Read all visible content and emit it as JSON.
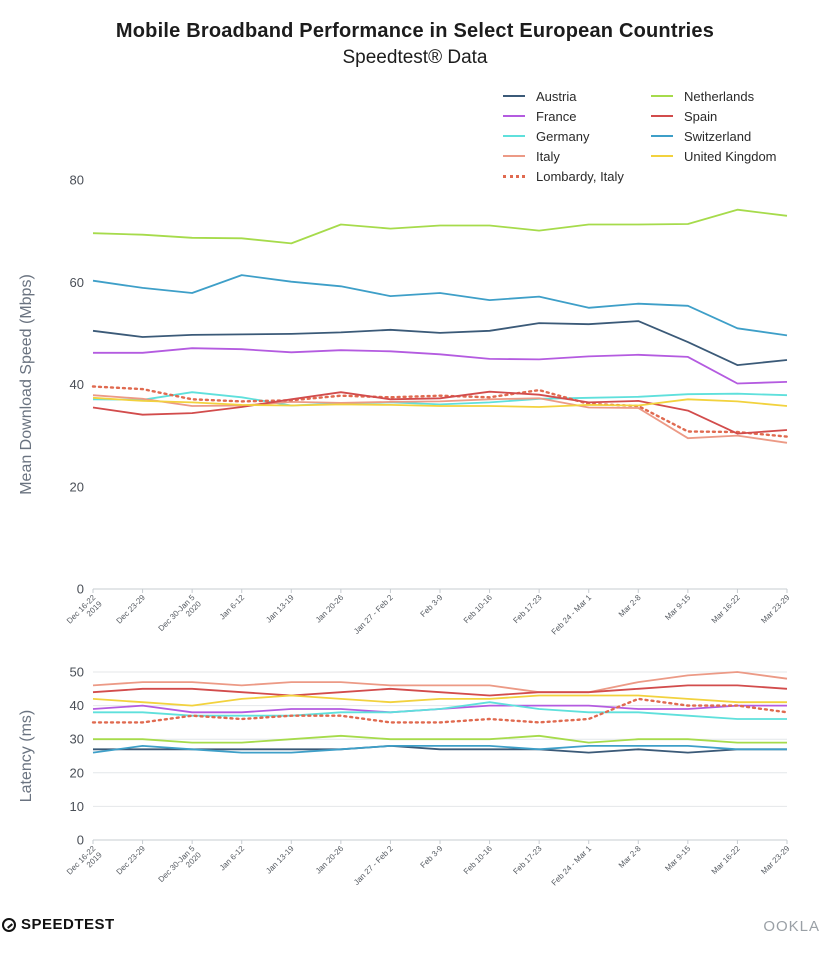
{
  "header": {
    "title": "Mobile Broadband Performance in Select European Countries",
    "subtitle": "Speedtest® Data"
  },
  "footer": {
    "left_logo": "SPEEDTEST",
    "right_logo": "OOKLA"
  },
  "colors": {
    "Austria": "#3b5a78",
    "France": "#b45be0",
    "Germany": "#5fe0dc",
    "Italy": "#ec9a86",
    "Lombardy, Italy": "#e06a50",
    "Netherlands": "#a6db4b",
    "Spain": "#d24c4c",
    "Switzerland": "#3e9fc8",
    "United Kingdom": "#f2d23e"
  },
  "legend": [
    {
      "name": "Austria",
      "style": "solid"
    },
    {
      "name": "France",
      "style": "solid"
    },
    {
      "name": "Germany",
      "style": "solid"
    },
    {
      "name": "Italy",
      "style": "solid"
    },
    {
      "name": "Lombardy, Italy",
      "style": "dotted"
    },
    {
      "name": "Netherlands",
      "style": "solid"
    },
    {
      "name": "Spain",
      "style": "solid"
    },
    {
      "name": "Switzerland",
      "style": "solid"
    },
    {
      "name": "United Kingdom",
      "style": "solid"
    }
  ],
  "chart_data": [
    {
      "type": "line",
      "title": "Mobile Broadband Performance in Select European Countries",
      "xlabel": "",
      "ylabel": "Mean Download Speed (Mbps)",
      "ylim": [
        0,
        80
      ],
      "yticks": [
        0,
        20,
        40,
        60,
        80
      ],
      "grid": false,
      "categories": [
        "Dec 16-22\n2019",
        "Dec 23-29",
        "Dec 30-Jan 5\n2020",
        "Jan 6-12",
        "Jan 13-19",
        "Jan 20-26",
        "Jan 27 - Feb 2",
        "Feb 3-9",
        "Feb 10-16",
        "Feb 17-23",
        "Feb 24 - Mar 1",
        "Mar 2-8",
        "Mar 9-15",
        "Mar 16-22",
        "Mar 23-29"
      ],
      "series": [
        {
          "name": "Austria",
          "values": [
            50.5,
            49.3,
            49.7,
            49.8,
            49.9,
            50.2,
            50.7,
            50.1,
            50.5,
            52.0,
            51.8,
            52.4,
            48.3,
            43.8,
            44.8
          ]
        },
        {
          "name": "France",
          "values": [
            46.2,
            46.2,
            47.1,
            46.9,
            46.3,
            46.7,
            46.5,
            45.9,
            45.0,
            44.9,
            45.5,
            45.8,
            45.4,
            40.2,
            40.5
          ]
        },
        {
          "name": "Germany",
          "values": [
            37.1,
            37.0,
            38.5,
            37.5,
            35.9,
            36.3,
            36.5,
            36.1,
            36.5,
            37.2,
            37.4,
            37.6,
            38.1,
            38.2,
            37.9
          ]
        },
        {
          "name": "Italy",
          "values": [
            37.9,
            37.2,
            35.8,
            35.9,
            36.6,
            36.4,
            36.6,
            36.7,
            37.1,
            37.3,
            35.5,
            35.4,
            29.5,
            30.0,
            28.6
          ]
        },
        {
          "name": "Lombardy, Italy",
          "values": [
            39.6,
            39.1,
            37.1,
            36.7,
            36.9,
            37.8,
            37.5,
            37.8,
            37.5,
            38.9,
            36.2,
            35.8,
            30.8,
            30.7,
            29.8
          ]
        },
        {
          "name": "Netherlands",
          "values": [
            69.6,
            69.3,
            68.7,
            68.6,
            67.6,
            71.3,
            70.5,
            71.1,
            71.1,
            70.1,
            71.3,
            71.3,
            71.4,
            74.2,
            73.0
          ]
        },
        {
          "name": "Spain",
          "values": [
            35.5,
            34.1,
            34.4,
            35.6,
            37.1,
            38.5,
            37.1,
            37.3,
            38.6,
            38.0,
            36.5,
            36.8,
            34.9,
            30.4,
            31.1
          ]
        },
        {
          "name": "Switzerland",
          "values": [
            60.3,
            58.9,
            57.9,
            61.4,
            60.1,
            59.2,
            57.3,
            57.9,
            56.5,
            57.2,
            55.0,
            55.8,
            55.4,
            51.0,
            49.6
          ]
        },
        {
          "name": "United Kingdom",
          "values": [
            37.4,
            36.8,
            36.5,
            36.0,
            35.9,
            36.1,
            36.0,
            35.8,
            35.8,
            35.6,
            36.0,
            35.9,
            37.1,
            36.7,
            35.8
          ]
        }
      ]
    },
    {
      "type": "line",
      "title": "",
      "xlabel": "",
      "ylabel": "Latency (ms)",
      "ylim": [
        0,
        50
      ],
      "yticks": [
        0,
        10,
        20,
        30,
        40,
        50
      ],
      "grid": true,
      "categories": [
        "Dec 16-22\n2019",
        "Dec 23-29",
        "Dec 30-Jan 5\n2020",
        "Jan 6-12",
        "Jan 13-19",
        "Jan 20-26",
        "Jan 27 - Feb 2",
        "Feb 3-9",
        "Feb 10-16",
        "Feb 17-23",
        "Feb 24 - Mar 1",
        "Mar 2-8",
        "Mar 9-15",
        "Mar 16-22",
        "Mar 23-29"
      ],
      "series": [
        {
          "name": "Austria",
          "values": [
            27,
            27,
            27,
            27,
            27,
            27,
            28,
            27,
            27,
            27,
            26,
            27,
            26,
            27,
            27
          ]
        },
        {
          "name": "France",
          "values": [
            39,
            40,
            38,
            38,
            39,
            39,
            38,
            39,
            40,
            40,
            40,
            39,
            39,
            40,
            40
          ]
        },
        {
          "name": "Germany",
          "values": [
            38,
            38,
            37,
            37,
            37,
            38,
            38,
            39,
            41,
            39,
            38,
            38,
            37,
            36,
            36
          ]
        },
        {
          "name": "Italy",
          "values": [
            46,
            47,
            47,
            46,
            47,
            47,
            46,
            46,
            46,
            44,
            44,
            47,
            49,
            50,
            48
          ]
        },
        {
          "name": "Lombardy, Italy",
          "values": [
            35,
            35,
            37,
            36,
            37,
            37,
            35,
            35,
            36,
            35,
            36,
            42,
            40,
            40,
            38
          ]
        },
        {
          "name": "Netherlands",
          "values": [
            30,
            30,
            29,
            29,
            30,
            31,
            30,
            30,
            30,
            31,
            29,
            30,
            30,
            29,
            29
          ]
        },
        {
          "name": "Spain",
          "values": [
            44,
            45,
            45,
            44,
            43,
            44,
            45,
            44,
            43,
            44,
            44,
            45,
            46,
            46,
            45
          ]
        },
        {
          "name": "Switzerland",
          "values": [
            26,
            28,
            27,
            26,
            26,
            27,
            28,
            28,
            28,
            27,
            28,
            28,
            28,
            27,
            27
          ]
        },
        {
          "name": "United Kingdom",
          "values": [
            42,
            41,
            40,
            42,
            43,
            42,
            41,
            42,
            42,
            43,
            43,
            43,
            42,
            41,
            41
          ]
        }
      ]
    }
  ]
}
